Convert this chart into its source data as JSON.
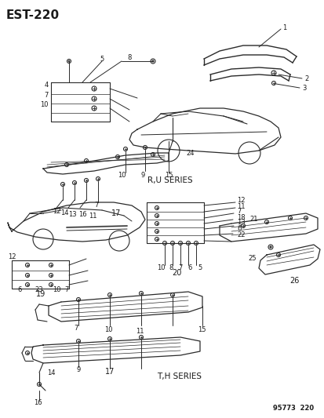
{
  "title": "EST-220",
  "subtitle_ru": "R,U SERIES",
  "subtitle_th": "T,H SERIES",
  "footer": "95773  220",
  "bg_color": "#ffffff",
  "line_color": "#2a2a2a",
  "text_color": "#1a1a1a",
  "title_fontsize": 11,
  "label_fontsize": 6.0
}
